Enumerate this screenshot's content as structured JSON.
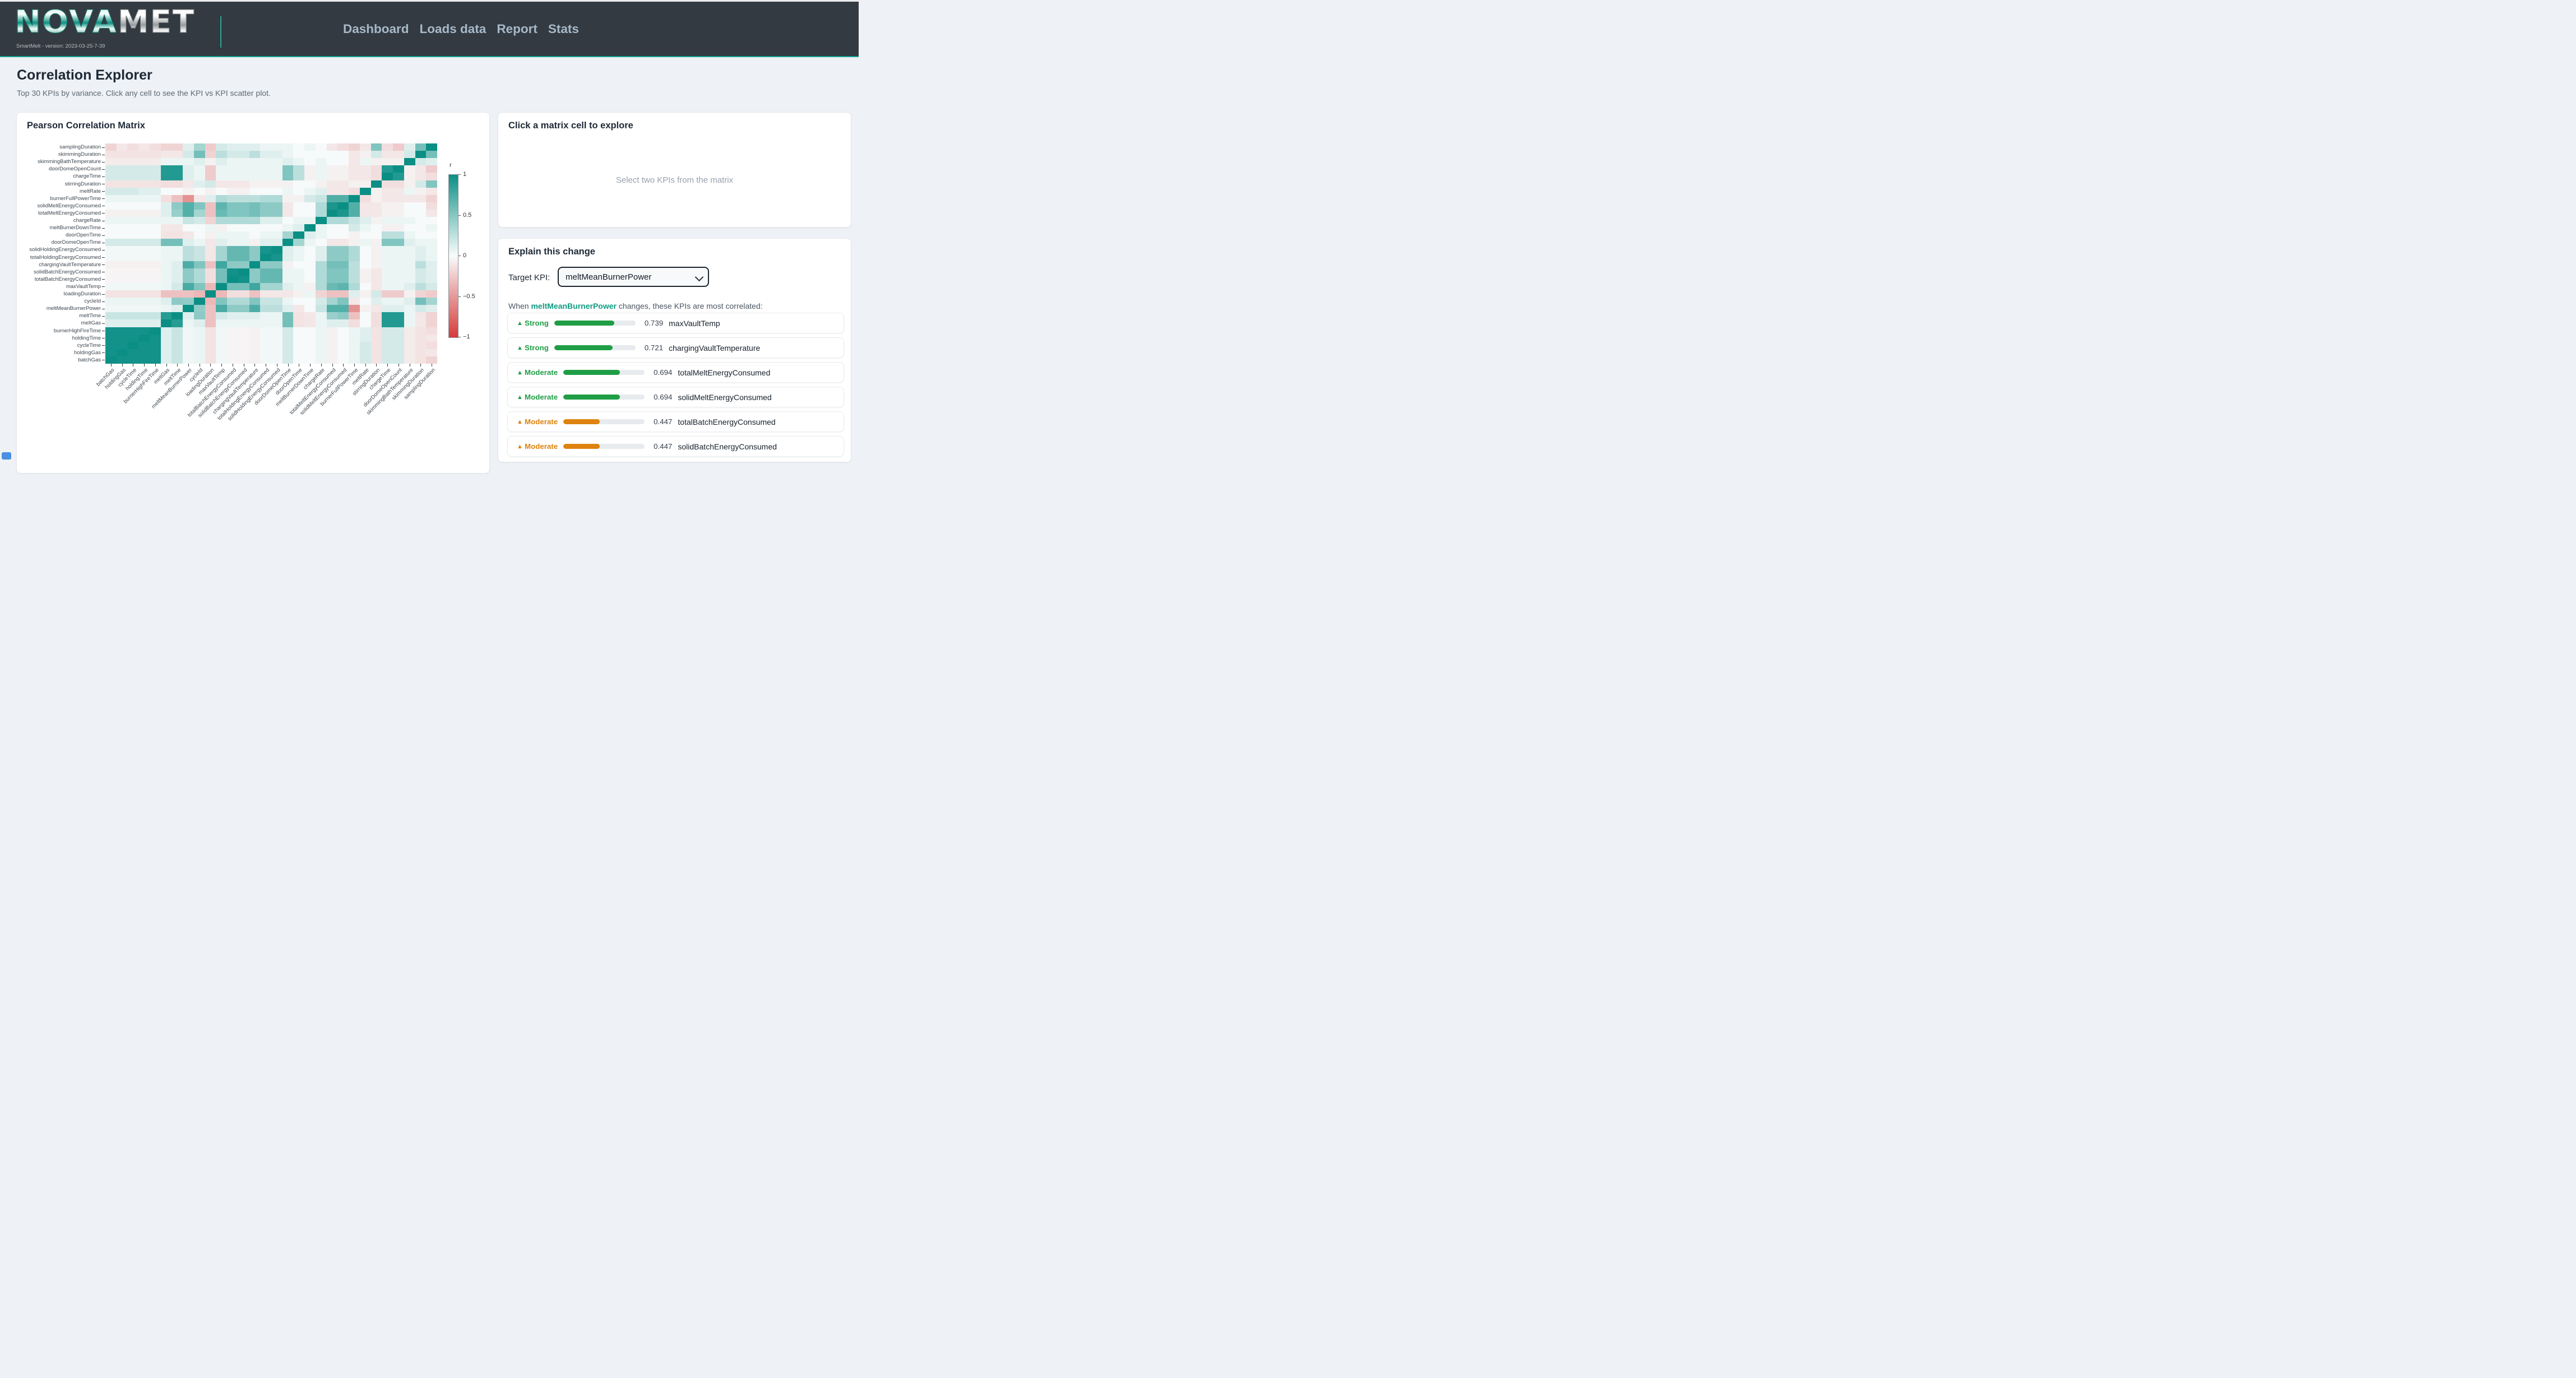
{
  "header": {
    "brand_nova": "NOVA",
    "brand_met": "MET",
    "tagline": "SmartMelt - version: 2023-03-25-7-39",
    "nav": [
      {
        "label": "Dashboard"
      },
      {
        "label": "Loads data"
      },
      {
        "label": "Report"
      },
      {
        "label": "Stats"
      }
    ]
  },
  "page": {
    "title": "Correlation Explorer",
    "subtitle": "Top 30 KPIs by variance. Click any cell to see the KPI vs KPI scatter plot."
  },
  "matrix_card": {
    "title": "Pearson Correlation Matrix"
  },
  "explore_card": {
    "title": "Click a matrix cell to explore",
    "placeholder": "Select two KPIs from the matrix"
  },
  "explain_card": {
    "title": "Explain this change",
    "target_label": "Target KPI:",
    "target_value": "meltMeanBurnerPower",
    "sentence_prefix": "When ",
    "sentence_kpi": "meltMeanBurnerPower",
    "sentence_suffix": " changes, these KPIs are most correlated:",
    "rows": [
      {
        "trend": "▲",
        "strength": "Strong",
        "value": "0.739",
        "kpi": "maxVaultTemp",
        "tone": "green"
      },
      {
        "trend": "▲",
        "strength": "Strong",
        "value": "0.721",
        "kpi": "chargingVaultTemperature",
        "tone": "green"
      },
      {
        "trend": "▲",
        "strength": "Moderate",
        "value": "0.694",
        "kpi": "totalMeltEnergyConsumed",
        "tone": "green"
      },
      {
        "trend": "▲",
        "strength": "Moderate",
        "value": "0.694",
        "kpi": "solidMeltEnergyConsumed",
        "tone": "green"
      },
      {
        "trend": "▲",
        "strength": "Moderate",
        "value": "0.447",
        "kpi": "totalBatchEnergyConsumed",
        "tone": "orange"
      },
      {
        "trend": "▲",
        "strength": "Moderate",
        "value": "0.447",
        "kpi": "solidBatchEnergyConsumed",
        "tone": "orange"
      }
    ]
  },
  "colors": {
    "green": "#1f9e46",
    "orange": "#dd830e",
    "kpi_accent_teal": "#0f9a82",
    "header_accent": "#13a392"
  },
  "chart_data": {
    "type": "heatmap",
    "title": "Pearson Correlation Matrix",
    "colorbar": {
      "title": "r",
      "ticks": [
        "1",
        "0.5",
        "0",
        "−0.5",
        "−1"
      ],
      "position": "right"
    },
    "value_range": [
      -1,
      1
    ],
    "colorscale": {
      "max_pos": "#0b8f85",
      "mid": "#f7fafa",
      "max_neg": "#d63c3c"
    },
    "x_axis_order": "kpis left to right",
    "y_axis_order": "kpis reversed, bottom to top (samplingDuration at top row)",
    "kpis": [
      "batchGas",
      "holdingGas",
      "cycleTime",
      "holdingTime",
      "burnerHighFireTime",
      "meltGas",
      "meltTime",
      "meltMeanBurnerPower",
      "cycleId",
      "loadingDuration",
      "maxVaultTemp",
      "totalBatchEnergyConsumed",
      "solidBatchEnergyConsumed",
      "chargingVaultTemperature",
      "totalHoldingEnergyConsumed",
      "solidHoldingEnergyConsumed",
      "doorDomeOpenTime",
      "doorOpenTime",
      "meltBurnerDownTime",
      "chargeRate",
      "totalMeltEnergyConsumed",
      "solidMeltEnergyConsumed",
      "burnerFullPowerTime",
      "meltRate",
      "stirringDuration",
      "chargeTime",
      "doorDomeOpenCount",
      "skimmingBathTemperature",
      "skimmingDuration",
      "samplingDuration"
    ],
    "matrix": [
      [
        1,
        0.97,
        0.97,
        0.97,
        0.97,
        0.1,
        0.2,
        0.03,
        0.05,
        -0.12,
        0.03,
        -0.03,
        -0.03,
        -0.05,
        0.02,
        0.02,
        0.15,
        0,
        0,
        0.05,
        -0.05,
        0,
        0.05,
        0.15,
        -0.12,
        0.15,
        0.15,
        -0.08,
        -0.12,
        -0.2
      ],
      [
        0.97,
        1,
        0.97,
        0.97,
        0.97,
        0.1,
        0.2,
        0.03,
        0.05,
        -0.12,
        0.03,
        -0.03,
        -0.03,
        -0.05,
        0.02,
        0.02,
        0.15,
        0,
        0,
        0.05,
        -0.05,
        0,
        0.05,
        0.15,
        -0.12,
        0.15,
        0.15,
        -0.08,
        -0.12,
        -0.1
      ],
      [
        0.97,
        0.97,
        1,
        0.97,
        0.97,
        0.1,
        0.2,
        0.03,
        0.05,
        -0.12,
        0.03,
        -0.03,
        -0.03,
        -0.05,
        0.02,
        0.02,
        0.15,
        0,
        0,
        0.05,
        -0.05,
        0,
        0.05,
        0.15,
        -0.12,
        0.15,
        0.15,
        -0.08,
        -0.12,
        -0.15
      ],
      [
        0.97,
        0.97,
        0.97,
        1,
        0.97,
        0.1,
        0.2,
        0.03,
        0.05,
        -0.12,
        0.03,
        -0.03,
        -0.03,
        -0.05,
        0.02,
        0.02,
        0.15,
        0,
        0,
        0.05,
        -0.05,
        0,
        0.05,
        0.1,
        -0.12,
        0.15,
        0.15,
        -0.08,
        -0.12,
        -0.1
      ],
      [
        0.97,
        0.97,
        0.97,
        0.97,
        1,
        0.1,
        0.2,
        0.03,
        0.05,
        -0.12,
        0.03,
        -0.03,
        -0.03,
        -0.05,
        0.02,
        0.02,
        0.15,
        0,
        0,
        0.05,
        -0.05,
        0,
        0.05,
        0.1,
        -0.12,
        0.15,
        0.15,
        -0.08,
        -0.12,
        -0.15
      ],
      [
        0.1,
        0.1,
        0.1,
        0.1,
        0.1,
        1,
        0.88,
        0.05,
        0.1,
        -0.3,
        0.05,
        0.05,
        0.05,
        0.05,
        0.05,
        0.05,
        0.55,
        -0.12,
        -0.1,
        0.05,
        0.1,
        0.1,
        -0.15,
        0,
        -0.15,
        0.9,
        0.9,
        0.05,
        -0.1,
        -0.2
      ],
      [
        0.2,
        0.2,
        0.2,
        0.2,
        0.2,
        0.88,
        1,
        0.1,
        0.45,
        -0.3,
        0.15,
        0.1,
        0.1,
        0.1,
        0.05,
        0.05,
        0.55,
        -0.12,
        -0.1,
        0.05,
        0.4,
        0.45,
        -0.3,
        0,
        -0.15,
        0.9,
        0.9,
        0.05,
        -0.1,
        -0.2
      ],
      [
        0.03,
        0.03,
        0.03,
        0.03,
        0.03,
        0.05,
        0.1,
        1,
        0.43,
        -0.3,
        0.739,
        0.447,
        0.447,
        0.721,
        0.25,
        0.25,
        0.1,
        -0.1,
        0,
        0.2,
        0.694,
        0.694,
        -0.55,
        -0.05,
        -0.1,
        0.1,
        0.1,
        0.05,
        0.15,
        0.1
      ],
      [
        0.05,
        0.05,
        0.05,
        0.05,
        0.05,
        0.1,
        0.45,
        0.43,
        1,
        -0.35,
        0.5,
        0.3,
        0.3,
        0.5,
        0.2,
        0.2,
        0.05,
        0,
        0,
        0.15,
        0.35,
        0.5,
        -0.1,
        0,
        0.1,
        0.05,
        0.05,
        0.1,
        0.55,
        0.35
      ],
      [
        -0.12,
        -0.12,
        -0.12,
        -0.12,
        -0.12,
        -0.3,
        -0.3,
        -0.3,
        -0.35,
        1,
        -0.35,
        -0.15,
        -0.15,
        -0.3,
        -0.1,
        -0.1,
        -0.1,
        -0.05,
        0.05,
        -0.2,
        -0.3,
        -0.3,
        0.1,
        -0.05,
        0.15,
        -0.25,
        -0.25,
        -0.05,
        -0.2,
        -0.25
      ],
      [
        0.03,
        0.03,
        0.03,
        0.03,
        0.03,
        0.05,
        0.15,
        0.739,
        0.5,
        -0.35,
        1,
        0.55,
        0.55,
        0.78,
        0.35,
        0.35,
        0.1,
        0.05,
        -0.05,
        0.3,
        0.6,
        0.65,
        0.3,
        0,
        -0.1,
        0.05,
        0.05,
        0.1,
        0.25,
        0.15
      ],
      [
        -0.03,
        -0.03,
        -0.03,
        -0.03,
        -0.03,
        0.05,
        0.1,
        0.447,
        0.3,
        -0.15,
        0.55,
        1,
        0.97,
        0.45,
        0.62,
        0.62,
        0.05,
        0.05,
        0,
        0.3,
        0.5,
        0.5,
        0.25,
        -0.05,
        -0.1,
        0.05,
        0.05,
        0.05,
        0.15,
        0.1
      ],
      [
        -0.03,
        -0.03,
        -0.03,
        -0.03,
        -0.03,
        0.05,
        0.1,
        0.447,
        0.3,
        -0.15,
        0.55,
        0.97,
        1,
        0.45,
        0.62,
        0.62,
        0.05,
        0.05,
        0,
        0.3,
        0.5,
        0.5,
        0.25,
        -0.05,
        -0.1,
        0.05,
        0.05,
        0.05,
        0.15,
        0.1
      ],
      [
        -0.05,
        -0.05,
        -0.05,
        -0.05,
        -0.05,
        0.05,
        0.1,
        0.721,
        0.5,
        -0.3,
        0.78,
        0.45,
        0.45,
        1,
        0.45,
        0.45,
        -0.05,
        0,
        0,
        0.3,
        0.55,
        0.55,
        0.25,
        0,
        -0.05,
        0.05,
        0.05,
        0.05,
        0.25,
        0.1
      ],
      [
        0.02,
        0.02,
        0.02,
        0.02,
        0.02,
        0.05,
        0.05,
        0.25,
        0.2,
        -0.1,
        0.35,
        0.62,
        0.62,
        0.45,
        1,
        0.95,
        0.1,
        0.05,
        0,
        0.1,
        0.45,
        0.45,
        0.3,
        0,
        -0.05,
        0.05,
        0.05,
        0.05,
        0.1,
        0.05
      ],
      [
        0.02,
        0.02,
        0.02,
        0.02,
        0.02,
        0.05,
        0.05,
        0.25,
        0.2,
        -0.1,
        0.35,
        0.62,
        0.62,
        0.45,
        0.95,
        1,
        0.1,
        0.05,
        0,
        0.1,
        0.45,
        0.45,
        0.3,
        0,
        -0.05,
        0.05,
        0.05,
        0.05,
        0.1,
        0.05
      ],
      [
        0.15,
        0.15,
        0.15,
        0.15,
        0.15,
        0.55,
        0.55,
        0.1,
        0.05,
        -0.1,
        0.1,
        0.05,
        0.05,
        -0.05,
        0.1,
        0.1,
        1,
        0.35,
        0.05,
        0,
        -0.1,
        -0.1,
        -0.05,
        0.05,
        -0.05,
        0.5,
        0.5,
        0.1,
        0.05,
        0.05
      ],
      [
        0,
        0,
        0,
        0,
        0,
        -0.12,
        -0.12,
        -0.1,
        0,
        -0.05,
        0.05,
        0.05,
        0.05,
        0,
        0.05,
        0.05,
        0.35,
        1,
        0.1,
        0.05,
        0,
        0,
        -0.05,
        0,
        0,
        0.25,
        0.25,
        0.05,
        0,
        0
      ],
      [
        0,
        0,
        0,
        0,
        0,
        -0.1,
        -0.1,
        0,
        0,
        0.05,
        -0.05,
        0,
        0,
        0,
        0,
        0,
        0.05,
        0.1,
        1,
        0.05,
        0,
        0,
        0.15,
        0.05,
        0,
        -0.05,
        -0.05,
        0,
        0,
        0.05
      ],
      [
        0.05,
        0.05,
        0.05,
        0.05,
        0.05,
        0.05,
        0.05,
        0.2,
        0.15,
        -0.2,
        0.3,
        0.3,
        0.3,
        0.3,
        0.1,
        0.1,
        0,
        0.05,
        0.05,
        1,
        0.3,
        0.3,
        0.2,
        0.1,
        -0.05,
        0.05,
        0.05,
        0.05,
        0,
        0
      ],
      [
        -0.05,
        -0.05,
        -0.05,
        -0.05,
        -0.05,
        0.1,
        0.4,
        0.694,
        0.35,
        -0.3,
        0.6,
        0.5,
        0.5,
        0.55,
        0.45,
        0.45,
        -0.1,
        0,
        0,
        0.3,
        1,
        0.93,
        0.7,
        -0.1,
        -0.1,
        -0.05,
        -0.05,
        0,
        0,
        -0.1
      ],
      [
        0,
        0,
        0,
        0,
        0,
        0.1,
        0.45,
        0.694,
        0.5,
        -0.3,
        0.65,
        0.5,
        0.5,
        0.55,
        0.45,
        0.45,
        -0.1,
        0,
        0,
        0.3,
        0.93,
        1,
        0.7,
        -0.1,
        -0.1,
        -0.05,
        -0.05,
        0,
        0,
        -0.15
      ],
      [
        0.05,
        0.05,
        0.05,
        0.05,
        0.05,
        -0.15,
        -0.3,
        -0.55,
        -0.1,
        0.1,
        0.3,
        0.25,
        0.25,
        0.25,
        0.3,
        0.3,
        -0.05,
        -0.05,
        0.15,
        0.2,
        0.7,
        0.7,
        1,
        -0.15,
        -0.05,
        -0.1,
        -0.1,
        -0.1,
        -0.1,
        -0.2
      ],
      [
        0.15,
        0.15,
        0.15,
        0.1,
        0.1,
        0,
        0,
        -0.05,
        0,
        -0.05,
        0,
        -0.05,
        -0.05,
        0,
        0,
        0,
        0.05,
        0,
        0.05,
        0.1,
        -0.1,
        -0.1,
        -0.15,
        1,
        -0.05,
        -0.1,
        -0.1,
        0.05,
        -0.05,
        -0.1
      ],
      [
        -0.12,
        -0.12,
        -0.12,
        -0.12,
        -0.12,
        -0.15,
        -0.15,
        -0.1,
        0.1,
        0.15,
        -0.1,
        -0.1,
        -0.1,
        -0.05,
        -0.05,
        -0.05,
        -0.05,
        0,
        0,
        -0.05,
        -0.1,
        -0.1,
        -0.05,
        -0.05,
        1,
        -0.15,
        -0.15,
        -0.05,
        0.15,
        0.5
      ],
      [
        0.15,
        0.15,
        0.15,
        0.15,
        0.15,
        0.9,
        0.9,
        0.1,
        0.05,
        -0.25,
        0.05,
        0.05,
        0.05,
        0.05,
        0.05,
        0.05,
        0.5,
        0.25,
        -0.05,
        0.05,
        -0.05,
        -0.05,
        -0.1,
        -0.1,
        -0.15,
        1,
        0.9,
        -0.05,
        -0.1,
        -0.15
      ],
      [
        0.15,
        0.15,
        0.15,
        0.15,
        0.15,
        0.9,
        0.9,
        0.1,
        0.05,
        -0.25,
        0.05,
        0.05,
        0.05,
        0.05,
        0.05,
        0.05,
        0.5,
        0.25,
        -0.05,
        0.05,
        -0.05,
        -0.05,
        -0.1,
        -0.1,
        -0.15,
        0.9,
        1,
        -0.05,
        -0.1,
        -0.25
      ],
      [
        -0.08,
        -0.08,
        -0.08,
        -0.08,
        -0.08,
        0.05,
        0.05,
        0.05,
        0.1,
        -0.05,
        0.1,
        0.05,
        0.05,
        0.05,
        0.05,
        0.05,
        0.1,
        0.05,
        0,
        0.05,
        0,
        0,
        -0.1,
        0.05,
        -0.05,
        -0.05,
        -0.05,
        1,
        0.15,
        0.1
      ],
      [
        -0.12,
        -0.12,
        -0.12,
        -0.12,
        -0.12,
        -0.1,
        -0.1,
        0.15,
        0.55,
        -0.2,
        0.25,
        0.15,
        0.15,
        0.25,
        0.1,
        0.1,
        0.05,
        0,
        0,
        0,
        0,
        0,
        -0.1,
        -0.05,
        0.15,
        -0.1,
        -0.1,
        0.15,
        1,
        0.55
      ],
      [
        -0.2,
        -0.1,
        -0.15,
        -0.1,
        -0.15,
        -0.2,
        -0.2,
        0.1,
        0.35,
        -0.25,
        0.15,
        0.1,
        0.1,
        0.1,
        0.05,
        0.05,
        0.05,
        0,
        0.05,
        0,
        -0.1,
        -0.15,
        -0.2,
        -0.1,
        0.5,
        -0.15,
        -0.25,
        0.1,
        0.55,
        1
      ]
    ]
  }
}
